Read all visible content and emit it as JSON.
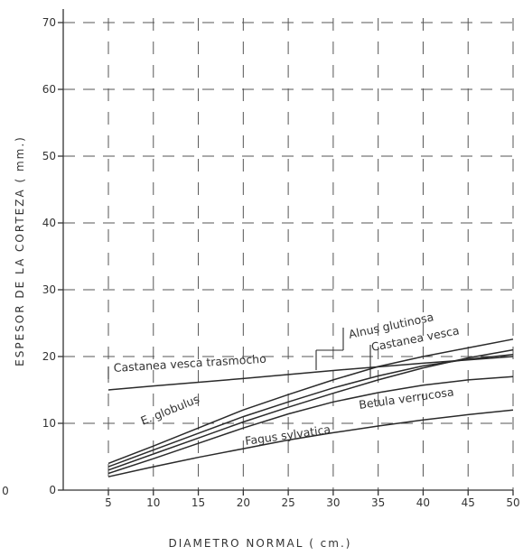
{
  "chart_data": {
    "type": "line",
    "xlabel": "DIAMETRO  NORMAL  ( cm.)",
    "ylabel": "ESPESOR  DE  LA  CORTEZA ( mm.)",
    "xlim": [
      0,
      50
    ],
    "ylim": [
      0,
      70
    ],
    "x_ticks": [
      "5",
      "10",
      "15",
      "20",
      "25",
      "30",
      "35",
      "40",
      "45",
      "50"
    ],
    "y_ticks": [
      "0",
      "10",
      "20",
      "30",
      "40",
      "50",
      "60",
      "70"
    ],
    "origin_label": "0",
    "grid": true,
    "series": [
      {
        "name": "Castanea vesca trasmocho",
        "x": [
          5,
          10,
          20,
          30,
          40,
          50
        ],
        "y": [
          15,
          15.6,
          16.7,
          17.9,
          19,
          20
        ]
      },
      {
        "name": "Alnus glutinosa",
        "x": [
          5,
          10,
          15,
          20,
          25,
          30,
          35,
          40,
          45,
          50
        ],
        "y": [
          4,
          6.6,
          9.3,
          12,
          14.3,
          16.5,
          18.5,
          20,
          21.3,
          22.6
        ]
      },
      {
        "name": "Castanea vesca",
        "x": [
          5,
          10,
          15,
          20,
          25,
          30,
          35,
          40,
          45,
          50
        ],
        "y": [
          3,
          5.4,
          7.8,
          10.2,
          12.4,
          14.5,
          16.5,
          18.3,
          19.8,
          21
        ]
      },
      {
        "name": "E. globulus",
        "x": [
          5,
          10,
          15,
          20,
          25,
          30,
          35,
          40,
          45,
          50
        ],
        "y": [
          3.5,
          6,
          8.5,
          11,
          13.2,
          15.3,
          17.1,
          18.6,
          19.6,
          20.3
        ]
      },
      {
        "name": "Betula verrucosa",
        "x": [
          5,
          10,
          15,
          20,
          25,
          30,
          35,
          40,
          45,
          50
        ],
        "y": [
          2.5,
          4.7,
          7,
          9.3,
          11.4,
          13.2,
          14.6,
          15.7,
          16.5,
          17
        ]
      },
      {
        "name": "Fagus sylvatica",
        "x": [
          5,
          10,
          15,
          20,
          25,
          30,
          35,
          40,
          45,
          50
        ],
        "y": [
          2,
          3.5,
          4.9,
          6.2,
          7.5,
          8.6,
          9.6,
          10.5,
          11.3,
          12
        ]
      }
    ]
  }
}
